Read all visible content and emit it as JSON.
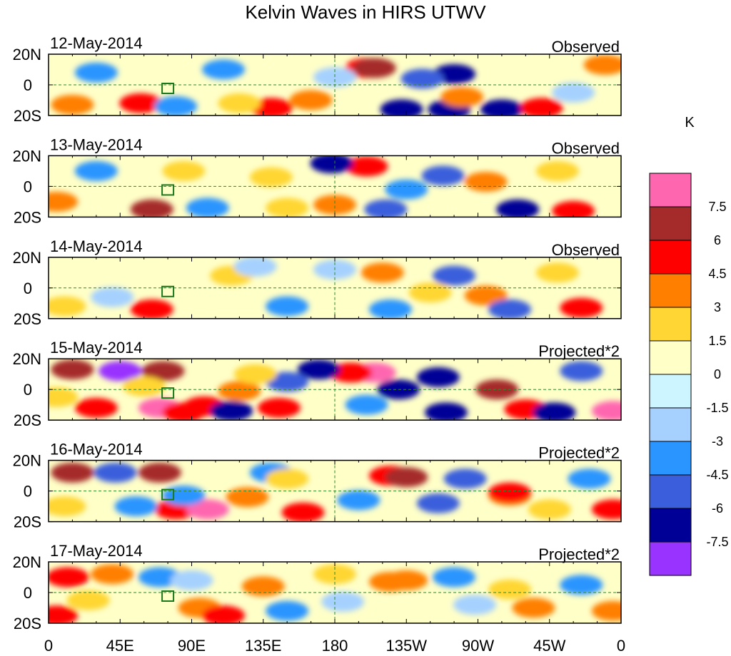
{
  "chart_data": {
    "type": "heatmap",
    "title": "Kelvin Waves in HIRS UTWV",
    "colorbar": {
      "unit": "K",
      "levels": [
        "7.5",
        "6",
        "4.5",
        "3",
        "1.5",
        "0",
        "-1.5",
        "-3",
        "-4.5",
        "-6",
        "-7.5"
      ],
      "colors": [
        "#ff66b0",
        "#a52a2a",
        "#ff0000",
        "#ff7f00",
        "#ffd633",
        "#ffffc8",
        "#ccf5ff",
        "#a6d1ff",
        "#2b95ff",
        "#3b5fdc",
        "#000096",
        "#9933ff"
      ]
    },
    "x_ticks": [
      "0",
      "45E",
      "90E",
      "135E",
      "180",
      "135W",
      "90W",
      "45W",
      "0"
    ],
    "y_ticks": [
      "20N",
      "0",
      "20S"
    ],
    "xlim": [
      0,
      360
    ],
    "ylim": [
      -20,
      20
    ],
    "panels": [
      {
        "date": "12-May-2014",
        "kind": "Observed",
        "blobs": [
          [
            200,
            11,
            "#ff0000"
          ],
          [
            205,
            11,
            "#a52a2a"
          ],
          [
            222,
            -16,
            "#000096"
          ],
          [
            252,
            -16,
            "#000096"
          ],
          [
            285,
            -16,
            "#000096"
          ],
          [
            310,
            -15,
            "#ff0000"
          ],
          [
            140,
            -15,
            "#ff0000"
          ],
          [
            58,
            -12,
            "#ff0000"
          ],
          [
            165,
            -10,
            "#ff7f00"
          ],
          [
            255,
            7,
            "#000096"
          ],
          [
            15,
            -13,
            "#ff7f00"
          ],
          [
            260,
            -8,
            "#ff7f00"
          ],
          [
            350,
            13,
            "#ff7f00"
          ],
          [
            110,
            10,
            "#2b95ff"
          ],
          [
            80,
            -14,
            "#2b95ff"
          ],
          [
            180,
            5,
            "#a6d1ff"
          ],
          [
            30,
            8,
            "#2b95ff"
          ],
          [
            235,
            4,
            "#3b5fdc"
          ],
          [
            120,
            -12,
            "#ffd633"
          ],
          [
            330,
            -5,
            "#a6d1ff"
          ]
        ]
      },
      {
        "date": "13-May-2014",
        "kind": "Observed",
        "blobs": [
          [
            65,
            -15,
            "#a52a2a"
          ],
          [
            200,
            13,
            "#ff0000"
          ],
          [
            178,
            15,
            "#000096"
          ],
          [
            248,
            7,
            "#3b5fdc"
          ],
          [
            295,
            -15,
            "#000096"
          ],
          [
            330,
            -16,
            "#ff0000"
          ],
          [
            212,
            -15,
            "#3b5fdc"
          ],
          [
            180,
            -12,
            "#ff7f00"
          ],
          [
            275,
            3,
            "#ff7f00"
          ],
          [
            5,
            -10,
            "#ff7f00"
          ],
          [
            100,
            -14,
            "#2b95ff"
          ],
          [
            225,
            -2,
            "#2b95ff"
          ],
          [
            320,
            10,
            "#ffd633"
          ],
          [
            140,
            6,
            "#ffd633"
          ],
          [
            30,
            10,
            "#2b95ff"
          ],
          [
            85,
            10,
            "#ffd633"
          ],
          [
            150,
            -14,
            "#ffd633"
          ]
        ]
      },
      {
        "date": "14-May-2014",
        "kind": "Observed",
        "blobs": [
          [
            65,
            -14,
            "#ff0000"
          ],
          [
            210,
            10,
            "#ff7f00"
          ],
          [
            255,
            8,
            "#3b5fdc"
          ],
          [
            275,
            -5,
            "#ff7f00"
          ],
          [
            290,
            -14,
            "#3b5fdc"
          ],
          [
            335,
            -13,
            "#ff0000"
          ],
          [
            215,
            -14,
            "#2b95ff"
          ],
          [
            40,
            -6,
            "#a6d1ff"
          ],
          [
            115,
            8,
            "#ffd633"
          ],
          [
            150,
            -12,
            "#2b95ff"
          ],
          [
            10,
            -12,
            "#ffd633"
          ],
          [
            130,
            14,
            "#a6d1ff"
          ],
          [
            180,
            12,
            "#a6d1ff"
          ],
          [
            240,
            -3,
            "#ffd633"
          ],
          [
            320,
            10,
            "#ffd633"
          ]
        ]
      },
      {
        "date": "15-May-2014",
        "kind": "Projected*2",
        "blobs": [
          [
            15,
            13,
            "#a52a2a"
          ],
          [
            45,
            12,
            "#9933ff"
          ],
          [
            70,
            -12,
            "#ff66b0"
          ],
          [
            72,
            12,
            "#a52a2a"
          ],
          [
            98,
            -11,
            "#ff0000"
          ],
          [
            85,
            -15,
            "#ff0000"
          ],
          [
            115,
            -14,
            "#000096"
          ],
          [
            120,
            -1,
            "#ff7f00"
          ],
          [
            145,
            -12,
            "#ff0000"
          ],
          [
            205,
            11,
            "#ff66b0"
          ],
          [
            190,
            11,
            "#ff0000"
          ],
          [
            170,
            13,
            "#000096"
          ],
          [
            220,
            0,
            "#000096"
          ],
          [
            245,
            8,
            "#000096"
          ],
          [
            250,
            -15,
            "#000096"
          ],
          [
            282,
            0,
            "#a52a2a"
          ],
          [
            300,
            -13,
            "#ff0000"
          ],
          [
            318,
            -15,
            "#000096"
          ],
          [
            355,
            -14,
            "#ff66b0"
          ],
          [
            335,
            12,
            "#3b5fdc"
          ],
          [
            30,
            -12,
            "#ff0000"
          ],
          [
            150,
            5,
            "#3b5fdc"
          ],
          [
            200,
            -10,
            "#2b95ff"
          ],
          [
            60,
            2,
            "#ffd633"
          ],
          [
            5,
            -5,
            "#ffd633"
          ],
          [
            130,
            10,
            "#ffd633"
          ]
        ]
      },
      {
        "date": "16-May-2014",
        "kind": "Projected*2",
        "blobs": [
          [
            15,
            12,
            "#a52a2a"
          ],
          [
            42,
            12,
            "#3b5fdc"
          ],
          [
            70,
            12,
            "#a52a2a"
          ],
          [
            80,
            -12,
            "#ff0000"
          ],
          [
            100,
            -12,
            "#ff66b0"
          ],
          [
            85,
            -3,
            "#2b95ff"
          ],
          [
            125,
            -4,
            "#ff7f00"
          ],
          [
            160,
            -14,
            "#ff0000"
          ],
          [
            215,
            10,
            "#ff0000"
          ],
          [
            225,
            9,
            "#a52a2a"
          ],
          [
            245,
            -8,
            "#3b5fdc"
          ],
          [
            262,
            8,
            "#3b5fdc"
          ],
          [
            290,
            -3,
            "#ff7f00"
          ],
          [
            290,
            -1,
            "#ff0000"
          ],
          [
            315,
            -12,
            "#ffd633"
          ],
          [
            355,
            -12,
            "#ff0000"
          ],
          [
            340,
            8,
            "#2b95ff"
          ],
          [
            55,
            -10,
            "#2b95ff"
          ],
          [
            140,
            12,
            "#2b95ff"
          ],
          [
            195,
            -6,
            "#2b95ff"
          ],
          [
            10,
            -10,
            "#ffd633"
          ],
          [
            150,
            8,
            "#ffd633"
          ]
        ]
      },
      {
        "date": "17-May-2014",
        "kind": "Projected*2",
        "blobs": [
          [
            5,
            -15,
            "#ff0000"
          ],
          [
            12,
            10,
            "#ff0000"
          ],
          [
            40,
            12,
            "#ff7f00"
          ],
          [
            70,
            10,
            "#2b95ff"
          ],
          [
            95,
            -10,
            "#ff7f00"
          ],
          [
            110,
            -15,
            "#ff0000"
          ],
          [
            135,
            4,
            "#ff7f00"
          ],
          [
            150,
            -12,
            "#2b95ff"
          ],
          [
            215,
            7,
            "#ff7f00"
          ],
          [
            225,
            8,
            "#ff7f00"
          ],
          [
            255,
            10,
            "#2b95ff"
          ],
          [
            268,
            -8,
            "#a6d1ff"
          ],
          [
            305,
            -10,
            "#ff7f00"
          ],
          [
            355,
            -12,
            "#ff7f00"
          ],
          [
            335,
            5,
            "#2b95ff"
          ],
          [
            90,
            8,
            "#a6d1ff"
          ],
          [
            185,
            -6,
            "#a6d1ff"
          ],
          [
            25,
            -5,
            "#ffd633"
          ],
          [
            180,
            12,
            "#ffd633"
          ],
          [
            290,
            2,
            "#ffd633"
          ]
        ]
      }
    ]
  }
}
